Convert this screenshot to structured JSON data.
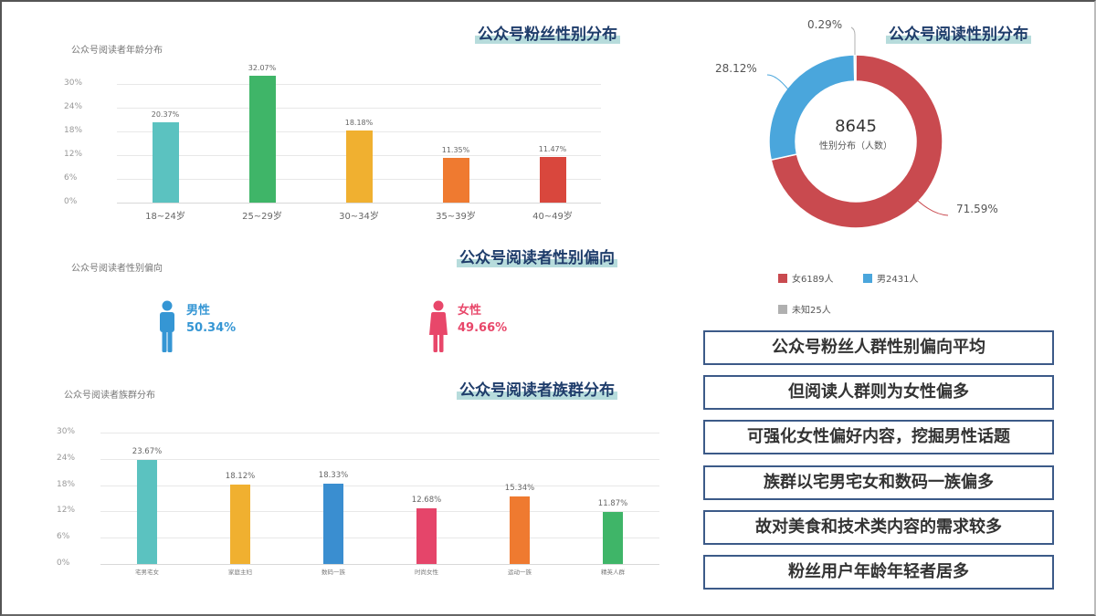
{
  "age_chart": {
    "banner": "公众号粉丝性别分布",
    "title": "公众号阅读者年龄分布"
  },
  "gender_bias": {
    "banner": "公众号阅读者性别偏向",
    "title": "公众号阅读者性别偏向",
    "male": {
      "label": "男性",
      "value": "50.34%",
      "color": "#3596d4"
    },
    "female": {
      "label": "女性",
      "value": "49.66%",
      "color": "#e8476a"
    }
  },
  "group_chart": {
    "banner": "公众号阅读者族群分布",
    "title": "公众号阅读者族群分布"
  },
  "donut": {
    "banner": "公众号阅读性别分布",
    "center_value": "8645",
    "center_label": "性别分布（人数）",
    "labels": {
      "unknown": "0.29%",
      "male": "28.12%",
      "female": "71.59%"
    },
    "legend": [
      {
        "label": "女6189人",
        "color": "#c94a4f"
      },
      {
        "label": "男2431人",
        "color": "#4aa6dc"
      },
      {
        "label": "未知25人",
        "color": "#b0b0b0"
      }
    ]
  },
  "insights": [
    "公众号粉丝人群性别偏向平均",
    "但阅读人群则为女性偏多",
    "可强化女性偏好内容，挖掘男性话题",
    "族群以宅男宅女和数码一族偏多",
    "故对美食和技术类内容的需求较多",
    "粉丝用户年龄年轻者居多"
  ],
  "chart_data": [
    {
      "type": "bar",
      "title": "公众号阅读者年龄分布",
      "categories": [
        "18~24岁",
        "25~29岁",
        "30~34岁",
        "35~39岁",
        "40~49岁"
      ],
      "values": [
        20.37,
        32.07,
        18.18,
        11.35,
        11.47
      ],
      "value_labels": [
        "20.37%",
        "32.07%",
        "18.18%",
        "11.35%",
        "11.47%"
      ],
      "colors": [
        "#5bc2c0",
        "#3fb568",
        "#f0b030",
        "#ef7a30",
        "#d9473d"
      ],
      "yticks": [
        "0%",
        "6%",
        "12%",
        "18%",
        "24%",
        "30%"
      ],
      "ylim": [
        0,
        30
      ],
      "xlabel": "",
      "ylabel": "",
      "grid": true
    },
    {
      "type": "bar",
      "title": "公众号阅读者族群分布",
      "categories": [
        "宅男宅女",
        "家庭主妇",
        "数码一族",
        "时尚女性",
        "运动一族",
        "精英人群"
      ],
      "values": [
        23.67,
        18.12,
        18.33,
        12.68,
        15.34,
        11.87
      ],
      "value_labels": [
        "23.67%",
        "18.12%",
        "18.33%",
        "12.68%",
        "15.34%",
        "11.87%"
      ],
      "colors": [
        "#5bc2c0",
        "#f0b030",
        "#3a8ed0",
        "#e5456a",
        "#ef7a30",
        "#3fb568"
      ],
      "yticks": [
        "0%",
        "6%",
        "12%",
        "18%",
        "24%",
        "30%"
      ],
      "ylim": [
        0,
        30
      ],
      "xlabel": "",
      "ylabel": "",
      "grid": true
    },
    {
      "type": "pie",
      "title": "性别分布（人数）",
      "categories": [
        "女",
        "男",
        "未知"
      ],
      "values": [
        71.59,
        28.12,
        0.29
      ],
      "counts": [
        6189,
        2431,
        25
      ],
      "total": 8645,
      "colors": [
        "#c94a4f",
        "#4aa6dc",
        "#b0b0b0"
      ],
      "donut": true,
      "legend_position": "bottom"
    }
  ]
}
